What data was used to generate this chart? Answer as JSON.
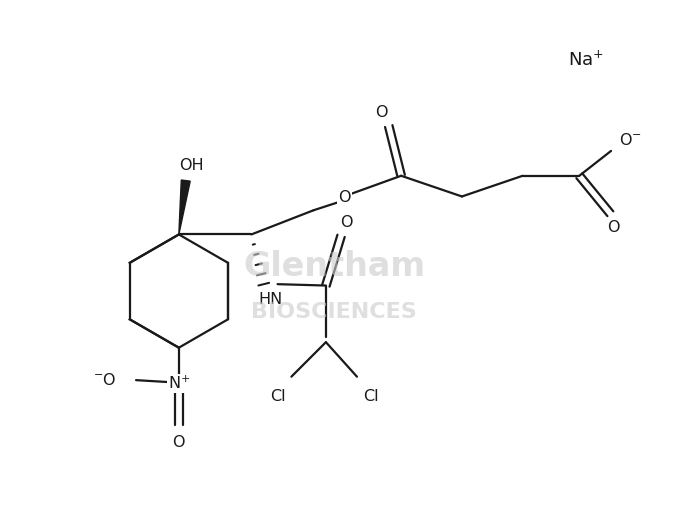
{
  "background_color": "#ffffff",
  "line_color": "#1a1a1a",
  "lw": 1.6,
  "fs": 11.5,
  "figsize": [
    6.96,
    5.2
  ],
  "dpi": 100,
  "xlim": [
    0,
    10
  ],
  "ylim": [
    0,
    7.4
  ]
}
